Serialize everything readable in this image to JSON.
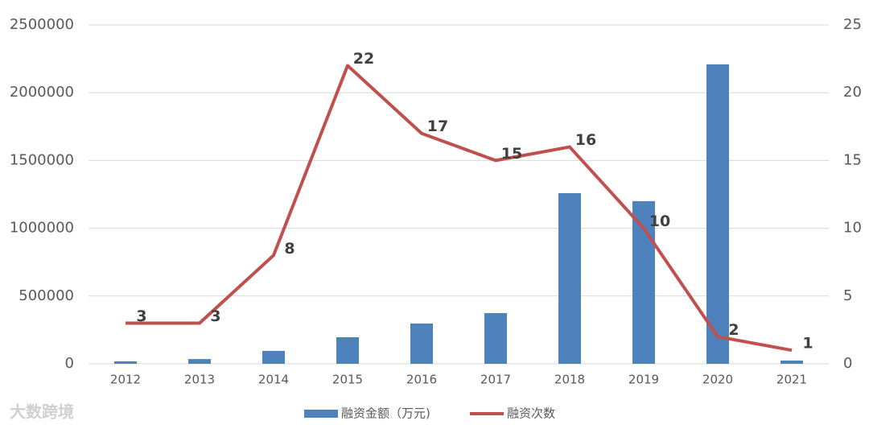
{
  "chart_data": {
    "type": "bar-line",
    "categories": [
      "2012",
      "2013",
      "2014",
      "2015",
      "2016",
      "2017",
      "2018",
      "2019",
      "2020",
      "2021"
    ],
    "series": [
      {
        "name": "融资金额（万元)",
        "color": "#4f81bd",
        "type": "bar",
        "values": [
          18000,
          35000,
          95000,
          196000,
          297000,
          374000,
          1259000,
          1200000,
          2209000,
          24000
        ]
      },
      {
        "name": "融资次数",
        "color": "#c0504d",
        "type": "line",
        "axis": "y2",
        "values": [
          3,
          3,
          8,
          22,
          17,
          15,
          16,
          10,
          2,
          1
        ]
      }
    ],
    "ylim": [
      0,
      2500000
    ],
    "yticks": [
      0,
      500000,
      1000000,
      1500000,
      2000000,
      2500000
    ],
    "y2lim": [
      0,
      25
    ],
    "y2ticks": [
      0,
      5,
      10,
      15,
      20,
      25
    ],
    "grid": true,
    "legend": "bottom",
    "watermark": "大数跨境"
  }
}
